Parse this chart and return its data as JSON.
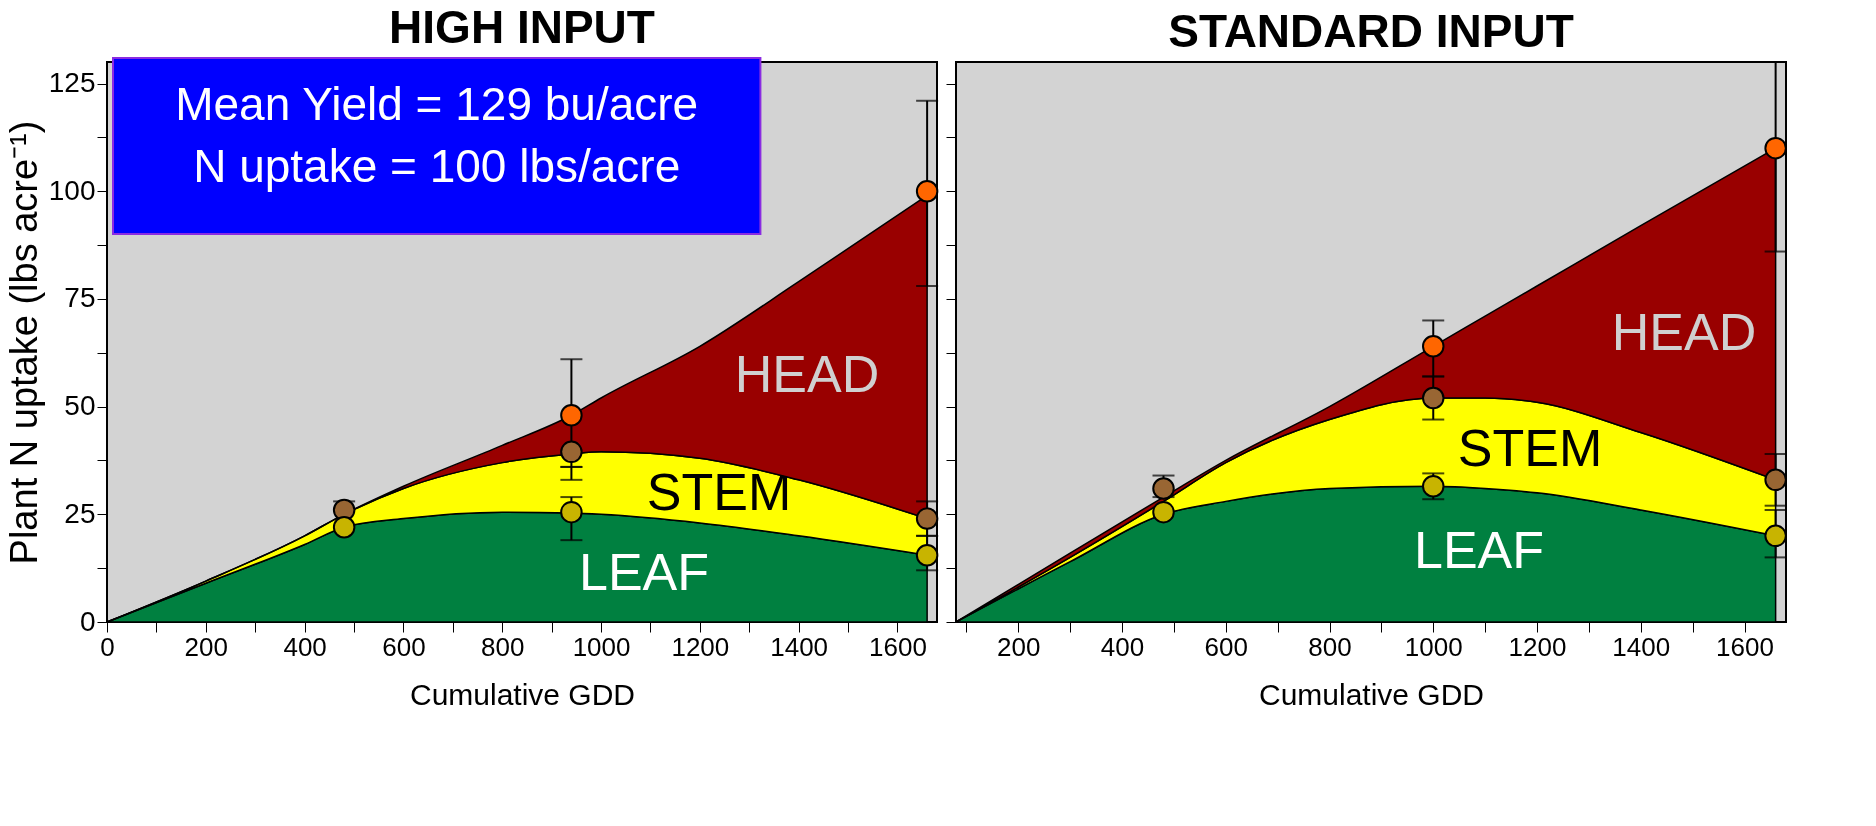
{
  "chart_data": [
    {
      "type": "area",
      "stacked": true,
      "title": "HIGH INPUT",
      "xlabel": "Cumulative GDD",
      "ylabel": "Plant N uptake (lbs acre⁻¹)",
      "x": [
        0,
        200,
        400,
        480,
        600,
        800,
        940,
        1000,
        1200,
        1400,
        1660
      ],
      "xlim": [
        0,
        1680
      ],
      "ylim": [
        0,
        130
      ],
      "xticks": [
        0,
        {
          "value": 100,
          "label": null
        },
        200,
        {
          "value": 300,
          "label": null
        },
        400,
        {
          "value": 500,
          "label": null
        },
        600,
        {
          "value": 700,
          "label": null
        },
        800,
        {
          "value": 900,
          "label": null
        },
        1000,
        {
          "value": 1100,
          "label": null
        },
        1200,
        {
          "value": 1300,
          "label": null
        },
        1400,
        {
          "value": 1500,
          "label": null
        },
        1600
      ],
      "yticks": [
        0,
        {
          "value": 12.5,
          "label": null
        },
        25,
        {
          "value": 37.5,
          "label": null
        },
        50,
        {
          "value": 62.5,
          "label": null
        },
        75,
        {
          "value": 87.5,
          "label": null
        },
        100,
        {
          "value": 112.5,
          "label": null
        },
        125
      ],
      "grid": false,
      "series": [
        {
          "name": "LEAF",
          "color": "#008040",
          "values": [
            0,
            9,
            18,
            22,
            24,
            25.5,
            25.3,
            25,
            23,
            20,
            15.5
          ]
        },
        {
          "name": "STEM",
          "color": "#ffff00",
          "values": [
            0,
            0.5,
            2,
            3,
            7,
            11.5,
            13.7,
            14.5,
            15,
            13,
            8.5
          ]
        },
        {
          "name": "HEAD",
          "color": "#990000",
          "values": [
            0,
            0,
            0,
            0,
            0.5,
            4,
            9,
            12.5,
            26,
            46,
            75
          ]
        },
        {
          "type": "scatter",
          "marker": "circle",
          "color": "#ff6600",
          "x": [
            940,
            1660
          ],
          "values": [
            48,
            100
          ],
          "errors": [
            [
              36,
              61
            ],
            [
              78,
              121
            ]
          ]
        },
        {
          "type": "scatter",
          "marker": "circle",
          "color": "#996633",
          "x": [
            480,
            940,
            1660
          ],
          "values": [
            26,
            39.5,
            24
          ],
          "errors": [
            [
              26,
              28
            ],
            [
              33,
              36
            ],
            [
              20,
              28
            ]
          ]
        },
        {
          "type": "scatter",
          "marker": "circle",
          "color": "#c8b400",
          "x": [
            480,
            940,
            1660
          ],
          "values": [
            22,
            25.5,
            15.5
          ],
          "errors": [
            null,
            [
              19,
              29
            ],
            [
              12,
              20
            ]
          ]
        }
      ],
      "annotations": [
        "Mean Yield = 129 bu/acre",
        "N uptake = 100 lbs/acre"
      ]
    },
    {
      "type": "area",
      "stacked": true,
      "title": "STANDARD INPUT",
      "xlabel": "Cumulative GDD",
      "x": [
        80,
        300,
        480,
        600,
        800,
        1000,
        1100,
        1200,
        1400,
        1660
      ],
      "xlim": [
        80,
        1680
      ],
      "ylim": [
        0,
        130
      ],
      "tick_labels": "x",
      "xticks": [
        {
          "value": 100,
          "label": null
        },
        200,
        {
          "value": 300,
          "label": null
        },
        400,
        {
          "value": 500,
          "label": null
        },
        600,
        {
          "value": 700,
          "label": null
        },
        800,
        {
          "value": 900,
          "label": null
        },
        1000,
        {
          "value": 1100,
          "label": null
        },
        1200,
        {
          "value": 1300,
          "label": null
        },
        1400,
        {
          "value": 1500,
          "label": null
        },
        1600
      ],
      "yticks": [
        0,
        {
          "value": 12.5,
          "label": null
        },
        25,
        {
          "value": 37.5,
          "label": null
        },
        50,
        {
          "value": 62.5,
          "label": null
        },
        75,
        {
          "value": 87.5,
          "label": null
        },
        100,
        {
          "value": 112.5,
          "label": null
        },
        125
      ],
      "grid": false,
      "series": [
        {
          "name": "LEAF",
          "color": "#008040",
          "values": [
            0,
            14,
            25,
            28,
            31,
            31.5,
            31,
            30,
            26,
            20
          ]
        },
        {
          "name": "STEM",
          "color": "#ffff00",
          "values": [
            0,
            1,
            3,
            9,
            16,
            20.5,
            21,
            21,
            18,
            13
          ]
        },
        {
          "name": "HEAD",
          "color": "#990000",
          "values": [
            0,
            1,
            1,
            0.5,
            3,
            12,
            19,
            27,
            48,
            77
          ]
        },
        {
          "type": "scatter",
          "marker": "circle",
          "color": "#ff6600",
          "x": [
            1000,
            1660
          ],
          "values": [
            64,
            110
          ],
          "errors": [
            [
              57,
              70
            ],
            [
              86,
              130
            ]
          ]
        },
        {
          "type": "scatter",
          "marker": "circle",
          "color": "#996633",
          "x": [
            480,
            1000,
            1660
          ],
          "values": [
            31,
            52,
            33
          ],
          "errors": [
            [
              29,
              34
            ],
            [
              47,
              57
            ],
            [
              27,
              39
            ]
          ]
        },
        {
          "type": "scatter",
          "marker": "circle",
          "color": "#c8b400",
          "x": [
            480,
            1000,
            1660
          ],
          "values": [
            25.5,
            31.5,
            20
          ],
          "errors": [
            null,
            [
              28.5,
              34.5
            ],
            [
              15,
              26
            ]
          ]
        }
      ]
    }
  ]
}
